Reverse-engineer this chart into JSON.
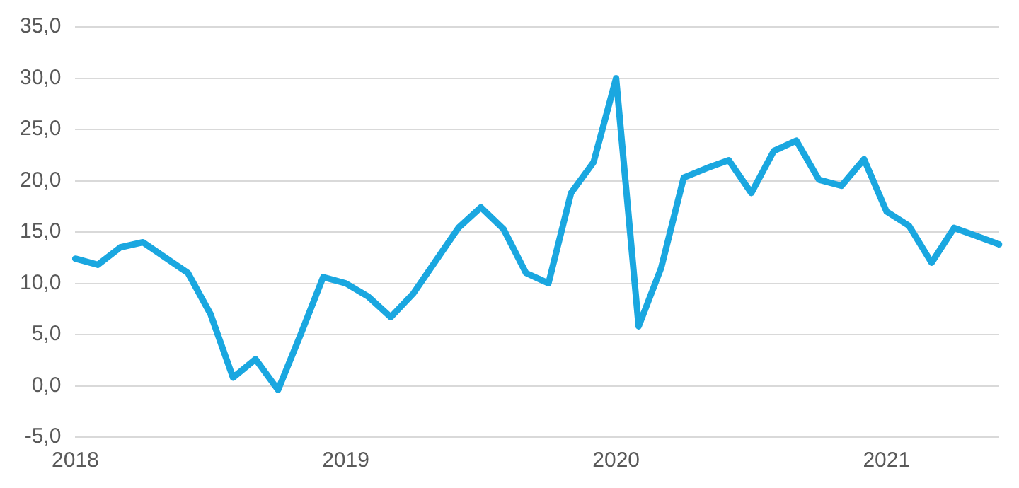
{
  "chart_data": {
    "type": "line",
    "categories": [
      "2018",
      null,
      null,
      null,
      null,
      null,
      null,
      null,
      null,
      null,
      null,
      null,
      "2019",
      null,
      null,
      null,
      null,
      null,
      null,
      null,
      null,
      null,
      null,
      null,
      "2020",
      null,
      null,
      null,
      null,
      null,
      null,
      null,
      null,
      null,
      null,
      null,
      "2021",
      null,
      null,
      null,
      null,
      null
    ],
    "series": [
      {
        "color": "#1aa7e0",
        "values": [
          12.4,
          11.8,
          13.5,
          14.0,
          12.5,
          11.0,
          7.0,
          0.8,
          2.6,
          -0.4,
          5.0,
          10.6,
          10.0,
          8.7,
          6.7,
          9.0,
          12.2,
          15.4,
          17.4,
          15.3,
          11.0,
          10.0,
          18.8,
          21.8,
          30.0,
          5.8,
          11.5,
          20.3,
          21.2,
          22.0,
          18.8,
          22.9,
          23.9,
          20.1,
          19.5,
          22.1,
          17.0,
          15.6,
          12.0,
          15.4,
          14.6,
          13.8
        ]
      }
    ],
    "ylim": [
      -5,
      35
    ],
    "yticks": [
      {
        "value": -5,
        "label": "-5,0"
      },
      {
        "value": 0,
        "label": "0,0"
      },
      {
        "value": 5,
        "label": "5,0"
      },
      {
        "value": 10,
        "label": "10,0"
      },
      {
        "value": 15,
        "label": "15,0"
      },
      {
        "value": 20,
        "label": "20,0"
      },
      {
        "value": 25,
        "label": "25,0"
      },
      {
        "value": 30,
        "label": "30,0"
      },
      {
        "value": 35,
        "label": "35,0"
      }
    ],
    "grid": "y",
    "legend": false,
    "marker": "none",
    "line_style": "solid"
  }
}
